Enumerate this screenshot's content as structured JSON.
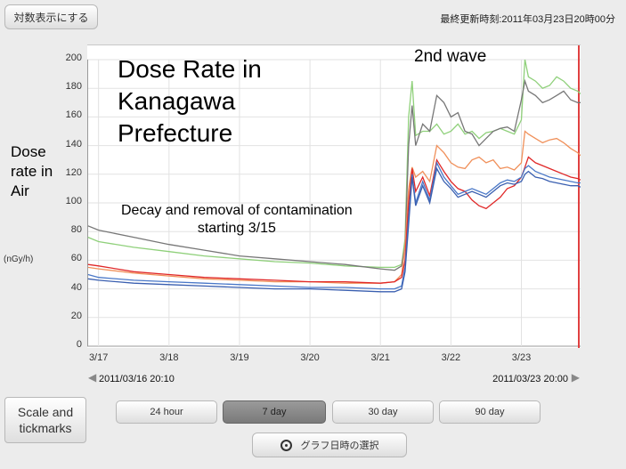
{
  "toolbar": {
    "log_scale_label": "対数表示にする"
  },
  "updated": "最終更新時刻:2011年03月23日20時00分",
  "annotations": {
    "title_lines": [
      "Dose Rate in",
      "Kanagawa",
      "Prefecture"
    ],
    "wave": "2nd wave",
    "decay_lines": [
      "Decay and removal of contamination",
      "starting 3/15"
    ],
    "ylabel_lines": [
      "Dose",
      "rate in",
      "Air"
    ],
    "unit": "(nGy/h)"
  },
  "range": {
    "start": "2011/03/16 20:10",
    "end": "2011/03/23 20:00"
  },
  "period_buttons": [
    "24 hour",
    "7 day",
    "30 day",
    "90 day"
  ],
  "selected_period": "7 day",
  "scale_button": "Scale and tickmarks",
  "date_button": "グラフ日時の選択",
  "chart_data": {
    "type": "line",
    "xlabel": "",
    "ylabel": "",
    "ylim": [
      0,
      200
    ],
    "yticks": [
      0,
      20,
      40,
      60,
      80,
      100,
      120,
      140,
      160,
      180,
      200
    ],
    "xlim": [
      16.84,
      23.84
    ],
    "xticks": [
      {
        "v": 17,
        "label": "3/17"
      },
      {
        "v": 18,
        "label": "3/18"
      },
      {
        "v": 19,
        "label": "3/19"
      },
      {
        "v": 20,
        "label": "3/20"
      },
      {
        "v": 21,
        "label": "3/21"
      },
      {
        "v": 22,
        "label": "3/22"
      },
      {
        "v": 23,
        "label": "3/23"
      }
    ],
    "grid": true,
    "series": [
      {
        "color": "#8fd07a",
        "x": [
          16.85,
          17.0,
          17.5,
          18.0,
          18.5,
          19.0,
          19.5,
          20.0,
          20.5,
          21.0,
          21.2,
          21.3,
          21.35,
          21.4,
          21.45,
          21.5,
          21.6,
          21.7,
          21.8,
          21.9,
          22.0,
          22.1,
          22.2,
          22.3,
          22.4,
          22.5,
          22.6,
          22.7,
          22.8,
          22.9,
          23.0,
          23.05,
          23.1,
          23.2,
          23.3,
          23.4,
          23.5,
          23.6,
          23.7,
          23.8,
          23.84
        ],
        "y": [
          76,
          73,
          69,
          66,
          63,
          61,
          59,
          58,
          56,
          55,
          55,
          57,
          75,
          160,
          185,
          147,
          150,
          150,
          155,
          148,
          150,
          155,
          148,
          150,
          145,
          149,
          150,
          152,
          150,
          148,
          158,
          200,
          188,
          185,
          180,
          182,
          188,
          185,
          180,
          178,
          176
        ]
      },
      {
        "color": "#777777",
        "x": [
          16.85,
          17.0,
          17.5,
          18.0,
          18.5,
          19.0,
          19.5,
          20.0,
          20.5,
          21.0,
          21.2,
          21.3,
          21.35,
          21.4,
          21.45,
          21.5,
          21.6,
          21.7,
          21.8,
          21.9,
          22.0,
          22.1,
          22.2,
          22.3,
          22.4,
          22.5,
          22.6,
          22.7,
          22.8,
          22.9,
          23.0,
          23.05,
          23.1,
          23.2,
          23.3,
          23.4,
          23.5,
          23.6,
          23.7,
          23.8,
          23.84
        ],
        "y": [
          84,
          81,
          76,
          71,
          67,
          63,
          61,
          59,
          57,
          54,
          53,
          56,
          70,
          140,
          168,
          140,
          155,
          150,
          175,
          170,
          160,
          163,
          150,
          148,
          140,
          145,
          150,
          152,
          153,
          150,
          172,
          185,
          178,
          175,
          170,
          172,
          175,
          178,
          172,
          170,
          170
        ]
      },
      {
        "color": "#f0905a",
        "x": [
          16.85,
          17.0,
          17.5,
          18.0,
          18.5,
          19.0,
          19.5,
          20.0,
          20.5,
          21.0,
          21.2,
          21.3,
          21.35,
          21.4,
          21.45,
          21.5,
          21.6,
          21.7,
          21.8,
          21.9,
          22.0,
          22.1,
          22.2,
          22.3,
          22.4,
          22.5,
          22.6,
          22.7,
          22.8,
          22.9,
          23.0,
          23.05,
          23.1,
          23.2,
          23.3,
          23.4,
          23.5,
          23.6,
          23.7,
          23.8,
          23.84
        ],
        "y": [
          55,
          54,
          51,
          49,
          47,
          46,
          45,
          45,
          44,
          44,
          45,
          50,
          70,
          110,
          125,
          118,
          122,
          115,
          140,
          135,
          128,
          125,
          124,
          130,
          132,
          128,
          130,
          124,
          125,
          123,
          128,
          150,
          148,
          145,
          142,
          144,
          145,
          142,
          138,
          135,
          133
        ]
      },
      {
        "color": "#e02828",
        "x": [
          16.85,
          17.0,
          17.5,
          18.0,
          18.5,
          19.0,
          19.5,
          20.0,
          20.5,
          21.0,
          21.2,
          21.3,
          21.35,
          21.4,
          21.45,
          21.5,
          21.6,
          21.7,
          21.8,
          21.9,
          22.0,
          22.1,
          22.2,
          22.3,
          22.4,
          22.5,
          22.6,
          22.7,
          22.8,
          22.9,
          23.0,
          23.05,
          23.1,
          23.2,
          23.3,
          23.4,
          23.5,
          23.6,
          23.7,
          23.8,
          23.84
        ],
        "y": [
          57,
          56,
          52,
          50,
          48,
          47,
          46,
          45,
          45,
          44,
          45,
          48,
          60,
          100,
          124,
          108,
          118,
          105,
          130,
          122,
          115,
          110,
          108,
          102,
          98,
          96,
          100,
          104,
          110,
          112,
          118,
          125,
          132,
          128,
          126,
          124,
          122,
          120,
          118,
          117,
          116
        ]
      },
      {
        "color": "#4a78c8",
        "x": [
          16.85,
          17.0,
          17.5,
          18.0,
          18.5,
          19.0,
          19.5,
          20.0,
          20.5,
          21.0,
          21.2,
          21.3,
          21.35,
          21.4,
          21.45,
          21.5,
          21.6,
          21.7,
          21.8,
          21.9,
          22.0,
          22.1,
          22.2,
          22.3,
          22.4,
          22.5,
          22.6,
          22.7,
          22.8,
          22.9,
          23.0,
          23.05,
          23.1,
          23.2,
          23.3,
          23.4,
          23.5,
          23.6,
          23.7,
          23.8,
          23.84
        ],
        "y": [
          50,
          48,
          46,
          45,
          44,
          43,
          42,
          41,
          41,
          40,
          40,
          42,
          55,
          90,
          120,
          100,
          115,
          102,
          128,
          118,
          112,
          106,
          108,
          110,
          108,
          106,
          110,
          114,
          116,
          115,
          118,
          124,
          126,
          122,
          120,
          118,
          117,
          116,
          115,
          114,
          114
        ]
      },
      {
        "color": "#3a5fb0",
        "x": [
          16.85,
          17.0,
          17.5,
          18.0,
          18.5,
          19.0,
          19.5,
          20.0,
          20.5,
          21.0,
          21.2,
          21.3,
          21.35,
          21.4,
          21.45,
          21.5,
          21.6,
          21.7,
          21.8,
          21.9,
          22.0,
          22.1,
          22.2,
          22.3,
          22.4,
          22.5,
          22.6,
          22.7,
          22.8,
          22.9,
          23.0,
          23.05,
          23.1,
          23.2,
          23.3,
          23.4,
          23.5,
          23.6,
          23.7,
          23.8,
          23.84
        ],
        "y": [
          47,
          46,
          44,
          43,
          42,
          41,
          40,
          40,
          39,
          38,
          38,
          40,
          52,
          85,
          118,
          98,
          112,
          100,
          124,
          115,
          110,
          104,
          106,
          108,
          106,
          104,
          108,
          112,
          114,
          113,
          115,
          120,
          122,
          118,
          117,
          115,
          114,
          113,
          112,
          112,
          111
        ]
      }
    ]
  }
}
